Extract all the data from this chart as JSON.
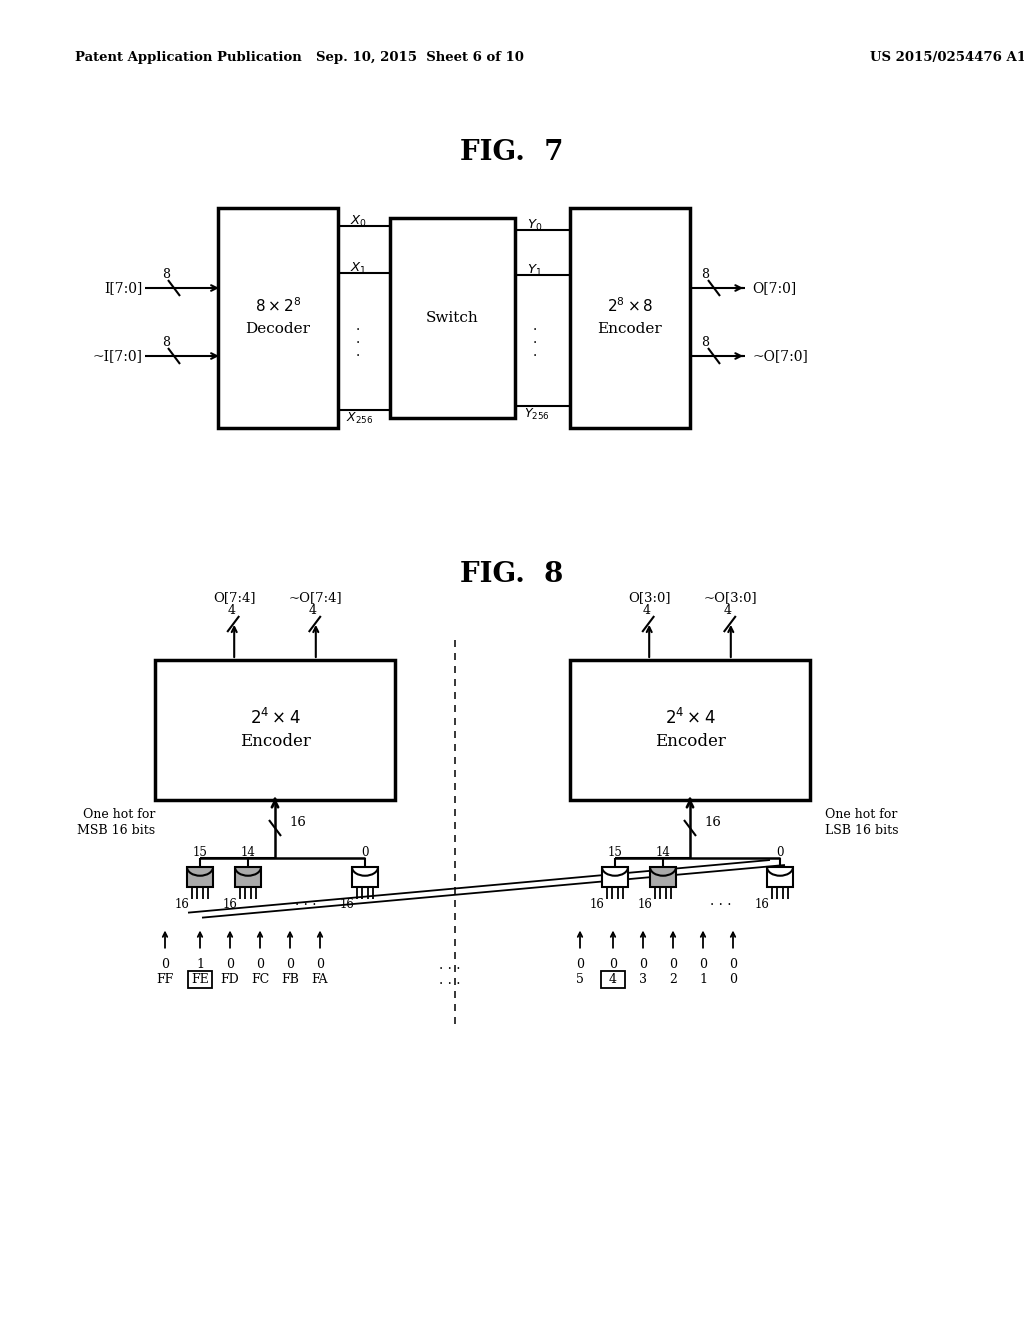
{
  "background_color": "#ffffff",
  "header_left": "Patent Application Publication",
  "header_mid": "Sep. 10, 2015  Sheet 6 of 10",
  "header_right": "US 2015/0254476 A1",
  "fig7_title": "FIG.  7",
  "fig8_title": "FIG.  8"
}
